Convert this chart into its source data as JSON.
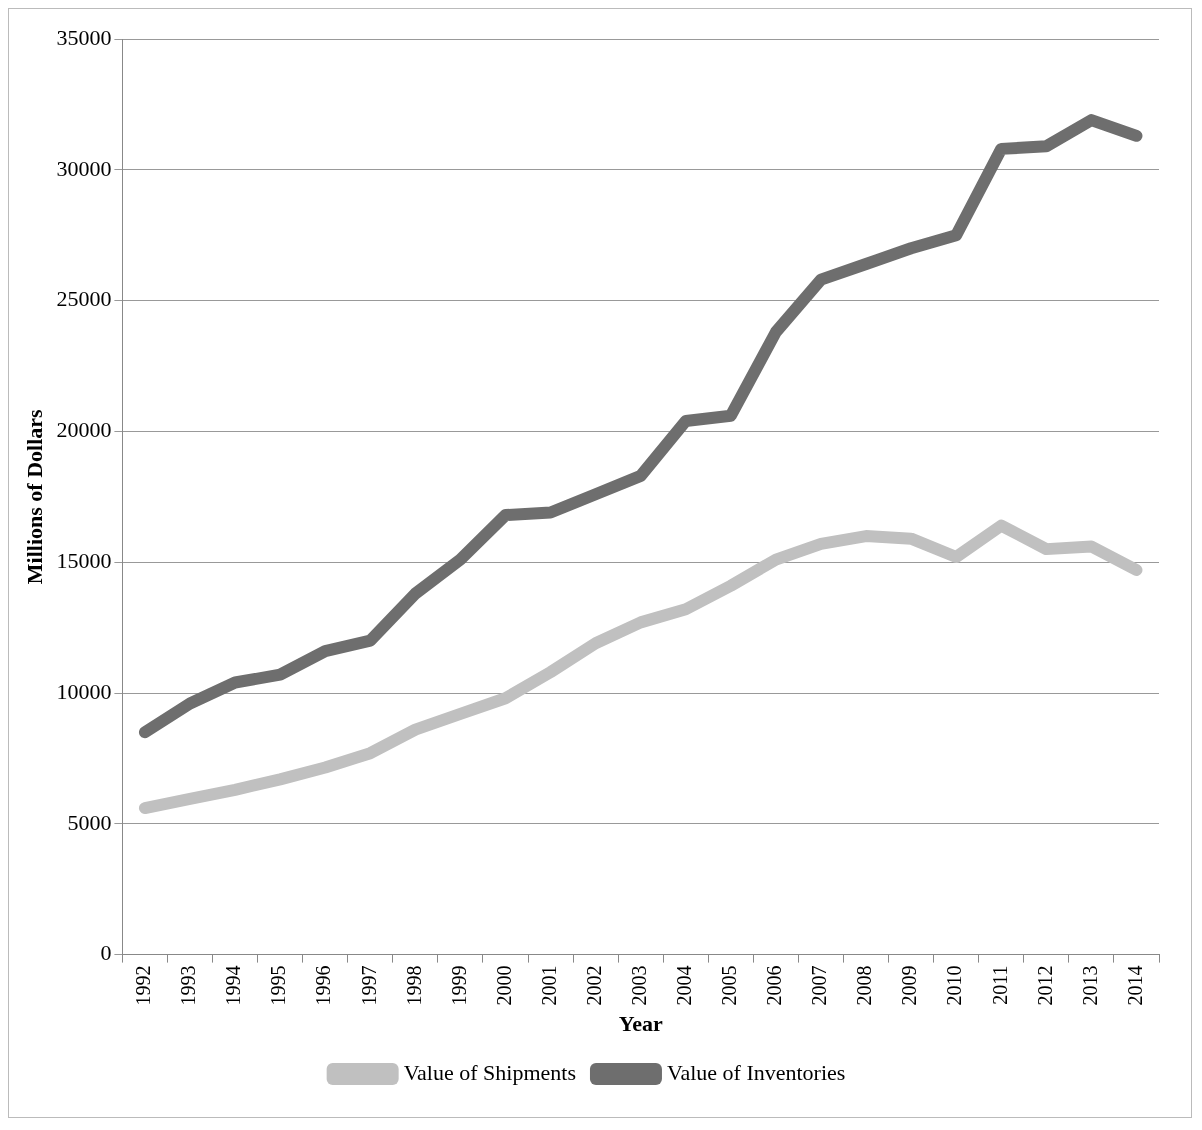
{
  "chart_data": {
    "type": "line",
    "xlabel": "Year",
    "ylabel": "Millions of Dollars",
    "categories": [
      "1992",
      "1993",
      "1994",
      "1995",
      "1996",
      "1997",
      "1998",
      "1999",
      "2000",
      "2001",
      "2002",
      "2003",
      "2004",
      "2005",
      "2006",
      "2007",
      "2008",
      "2009",
      "2010",
      "2011",
      "2012",
      "2013",
      "2014"
    ],
    "series": [
      {
        "name": "Value of Shipments",
        "color": "#c0c0c0",
        "values": [
          5600,
          5950,
          6300,
          6700,
          7150,
          7700,
          8600,
          9200,
          9800,
          10800,
          11900,
          12700,
          13200,
          14100,
          15100,
          15700,
          16000,
          15900,
          15200,
          16400,
          15500,
          15600,
          14700
        ]
      },
      {
        "name": "Value of Inventories",
        "color": "#6e6e6e",
        "values": [
          8500,
          9600,
          10400,
          10700,
          11600,
          12000,
          13800,
          15100,
          16800,
          16900,
          17600,
          18300,
          20400,
          20600,
          23800,
          25800,
          26400,
          27000,
          27500,
          30800,
          30900,
          31900,
          31300
        ]
      }
    ],
    "ylim": [
      0,
      35000
    ],
    "yticks": [
      0,
      5000,
      10000,
      15000,
      20000,
      25000,
      30000,
      35000
    ],
    "grid": "y",
    "legend": "bottom",
    "marker": "none",
    "line_style": "solid"
  }
}
